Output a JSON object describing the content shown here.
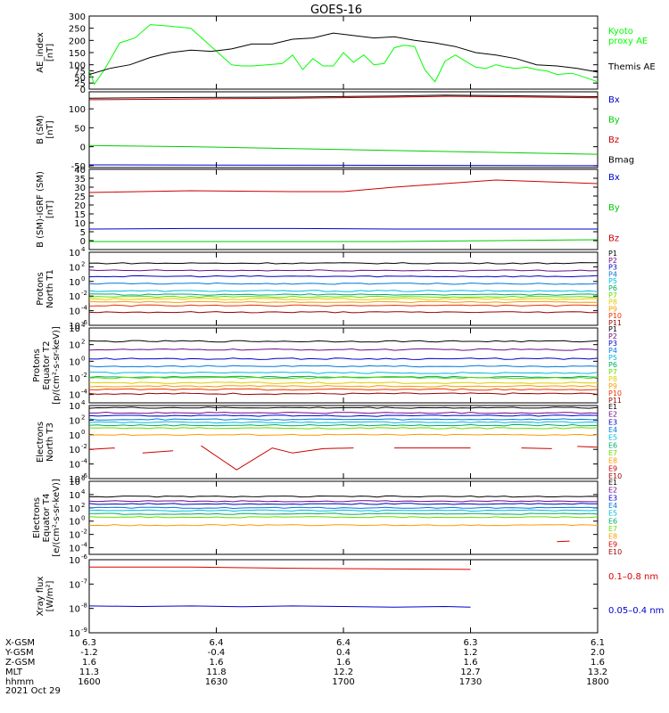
{
  "title": "GOES-16",
  "chart_data": [
    {
      "type": "line",
      "ylabel": "AE_index\n[nT]",
      "ylim": [
        0,
        300
      ],
      "yticks": [
        0,
        25,
        50,
        75,
        100,
        150,
        200,
        250,
        300
      ],
      "ytick_labels": [
        "0",
        "25",
        "50",
        "75",
        "100",
        "150",
        "200",
        "250",
        "300"
      ],
      "series": [
        {
          "name": "Kyoto\nproxy AE",
          "color": "#00ff00",
          "x": [
            0,
            0.01,
            0.03,
            0.06,
            0.09,
            0.12,
            0.15,
            0.2,
            0.24,
            0.28,
            0.3,
            0.32,
            0.35,
            0.38,
            0.4,
            0.42,
            0.44,
            0.46,
            0.48,
            0.5,
            0.52,
            0.54,
            0.56,
            0.58,
            0.6,
            0.62,
            0.64,
            0.66,
            0.68,
            0.7,
            0.72,
            0.74,
            0.76,
            0.78,
            0.8,
            0.82,
            0.84,
            0.86,
            0.88,
            0.9,
            0.92,
            0.95,
            0.98,
            1.0
          ],
          "y": [
            75,
            20,
            80,
            190,
            210,
            265,
            260,
            250,
            175,
            100,
            95,
            95,
            100,
            105,
            140,
            80,
            125,
            95,
            95,
            150,
            110,
            140,
            100,
            105,
            170,
            180,
            175,
            80,
            30,
            115,
            140,
            115,
            90,
            85,
            100,
            90,
            85,
            90,
            80,
            75,
            60,
            65,
            45,
            30
          ]
        },
        {
          "name": "Themis AE",
          "color": "#000000",
          "x": [
            0,
            0.04,
            0.08,
            0.12,
            0.16,
            0.2,
            0.24,
            0.28,
            0.32,
            0.36,
            0.4,
            0.44,
            0.48,
            0.52,
            0.56,
            0.6,
            0.64,
            0.68,
            0.72,
            0.76,
            0.8,
            0.84,
            0.88,
            0.92,
            0.96,
            1.0
          ],
          "y": [
            60,
            85,
            100,
            130,
            150,
            160,
            155,
            165,
            185,
            185,
            205,
            210,
            230,
            220,
            210,
            215,
            200,
            190,
            175,
            150,
            140,
            125,
            100,
            95,
            85,
            70
          ]
        }
      ]
    },
    {
      "type": "line",
      "ylabel": "B (SM)\n[nT]",
      "ylim": [
        -55,
        145
      ],
      "yticks": [
        -50,
        0,
        50,
        100
      ],
      "ytick_labels": [
        "-50",
        "0",
        "50",
        "100"
      ],
      "series": [
        {
          "name": "Bx",
          "color": "#0000cc",
          "x": [
            0,
            0.5,
            1.0
          ],
          "y": [
            -48,
            -49,
            -50
          ]
        },
        {
          "name": "By",
          "color": "#00cc00",
          "x": [
            0,
            0.2,
            0.4,
            0.6,
            0.8,
            1.0
          ],
          "y": [
            3,
            0,
            -5,
            -10,
            -15,
            -20
          ]
        },
        {
          "name": "Bz",
          "color": "#cc0000",
          "x": [
            0,
            0.2,
            0.4,
            0.6,
            0.7,
            0.8,
            1.0
          ],
          "y": [
            124,
            126,
            128,
            131,
            133,
            132,
            129
          ]
        },
        {
          "name": "Bmag",
          "color": "#000000",
          "x": [
            0,
            0.2,
            0.4,
            0.6,
            0.7,
            0.8,
            1.0
          ],
          "y": [
            128,
            130,
            131,
            134,
            136,
            135,
            132
          ]
        }
      ]
    },
    {
      "type": "line",
      "ylabel": "B (SM)-IGRF (SM)\n[nT]",
      "ylim": [
        -5,
        40
      ],
      "yticks": [
        0,
        5,
        10,
        15,
        20,
        25,
        30,
        35,
        40
      ],
      "ytick_labels": [
        "0",
        "5",
        "10",
        "15",
        "20",
        "25",
        "30",
        "35",
        "40"
      ],
      "series": [
        {
          "name": "Bx",
          "color": "#0000cc",
          "x": [
            0,
            0.2,
            0.4,
            0.6,
            0.8,
            1.0
          ],
          "y": [
            6.5,
            6.8,
            6.8,
            6.5,
            6.5,
            6.5
          ]
        },
        {
          "name": "By",
          "color": "#00cc00",
          "x": [
            0,
            0.2,
            0.4,
            0.6,
            0.8,
            1.0
          ],
          "y": [
            -0.5,
            -0.5,
            -0.5,
            -0.5,
            0,
            0.5
          ]
        },
        {
          "name": "Bz",
          "color": "#cc0000",
          "x": [
            0,
            0.2,
            0.4,
            0.5,
            0.6,
            0.7,
            0.8,
            0.9,
            1.0
          ],
          "y": [
            27,
            28,
            27.5,
            27.5,
            30,
            32,
            34,
            33,
            32
          ]
        }
      ]
    },
    {
      "type": "line",
      "ylabel": "Protons\nNorth T1",
      "yscale": "log",
      "ylim_exp": [
        -6,
        4
      ],
      "ytick_exps": [
        -6,
        -4,
        -2,
        0,
        2,
        4
      ],
      "series": [
        {
          "name": "P1",
          "color": "#000000",
          "level": 2.5
        },
        {
          "name": "P2",
          "color": "#6a0d8a",
          "level": 1.5
        },
        {
          "name": "P3",
          "color": "#0000cc",
          "level": 0.7
        },
        {
          "name": "P4",
          "color": "#0077dd",
          "level": -0.3
        },
        {
          "name": "P5",
          "color": "#00bbdd",
          "level": -1.3
        },
        {
          "name": "P6",
          "color": "#00aa66",
          "level": -1.8
        },
        {
          "name": "P7",
          "color": "#66dd00",
          "level": -2.1
        },
        {
          "name": "P8",
          "color": "#ddcc00",
          "level": -2.4
        },
        {
          "name": "P9",
          "color": "#ff9900",
          "level": -2.8
        },
        {
          "name": "P10",
          "color": "#ee3300",
          "level": -3.3
        },
        {
          "name": "P11",
          "color": "#990000",
          "level": -4.2
        }
      ]
    },
    {
      "type": "line",
      "ylabel": "Protons\nEquator T2\n[p/(cm²-s-sr-keV)]",
      "yscale": "log",
      "ylim_exp": [
        -5,
        4
      ],
      "ytick_exps": [
        -4,
        -2,
        0,
        2,
        4
      ],
      "series": [
        {
          "name": "P1",
          "color": "#000000",
          "level": 2.4
        },
        {
          "name": "P2",
          "color": "#6a0d8a",
          "level": 1.4
        },
        {
          "name": "P3",
          "color": "#0000cc",
          "level": 0.3
        },
        {
          "name": "P4",
          "color": "#0077dd",
          "level": -0.6
        },
        {
          "name": "P5",
          "color": "#00bbdd",
          "level": -1.4
        },
        {
          "name": "P6",
          "color": "#00aa66",
          "level": -1.9
        },
        {
          "name": "P7",
          "color": "#66dd00",
          "level": -2.0
        },
        {
          "name": "P8",
          "color": "#ddcc00",
          "level": -2.6
        },
        {
          "name": "P9",
          "color": "#ff9900",
          "level": -3.0
        },
        {
          "name": "P10",
          "color": "#ee3300",
          "level": -3.4
        },
        {
          "name": "P11",
          "color": "#990000",
          "level": -3.9
        }
      ]
    },
    {
      "type": "line",
      "ylabel": "Electrons\nNorth T3",
      "yscale": "log",
      "ylim_exp": [
        -6,
        4
      ],
      "ytick_exps": [
        -6,
        -4,
        -2,
        0,
        2,
        4
      ],
      "series": [
        {
          "name": "E1",
          "color": "#000000",
          "level": 3.7
        },
        {
          "name": "E2",
          "color": "#6a0d8a",
          "level": 3.0
        },
        {
          "name": "E3",
          "color": "#0000cc",
          "level": 2.6
        },
        {
          "name": "E4",
          "color": "#0077dd",
          "level": 2.1
        },
        {
          "name": "E5",
          "color": "#00bbdd",
          "level": 1.7
        },
        {
          "name": "E6",
          "color": "#00aa66",
          "level": 1.3
        },
        {
          "name": "E7",
          "color": "#66dd00",
          "level": 0.9
        },
        {
          "name": "E8",
          "color": "#ff9900",
          "level": 0.0
        },
        {
          "name": "E9",
          "color": "#cc0000",
          "level": null
        },
        {
          "name": "E10",
          "color": "#990000",
          "level": null
        }
      ],
      "e9_segments": [
        {
          "x": [
            0.0,
            0.05
          ],
          "y": [
            -2.0,
            -1.8
          ]
        },
        {
          "x": [
            0.105,
            0.165
          ],
          "y": [
            -2.5,
            -2.2
          ]
        },
        {
          "x": [
            0.22,
            0.29,
            0.36,
            0.4,
            0.46,
            0.52
          ],
          "y": [
            -1.5,
            -4.8,
            -1.8,
            -2.5,
            -1.9,
            -1.8
          ]
        },
        {
          "x": [
            0.6,
            0.75
          ],
          "y": [
            -1.8,
            -1.8
          ]
        },
        {
          "x": [
            0.85,
            0.91
          ],
          "y": [
            -1.8,
            -1.9
          ]
        },
        {
          "x": [
            0.96,
            1.0
          ],
          "y": [
            -1.6,
            -1.7
          ]
        }
      ]
    },
    {
      "type": "line",
      "ylabel": "Electrons\nEquator T4\n[e/(cm²-s-sr-keV)]",
      "yscale": "log",
      "ylim_exp": [
        -5,
        6
      ],
      "ytick_exps": [
        -4,
        -2,
        0,
        2,
        4,
        6
      ],
      "series": [
        {
          "name": "E1",
          "color": "#000000",
          "level": 3.7
        },
        {
          "name": "E2",
          "color": "#6a0d8a",
          "level": 3.0
        },
        {
          "name": "E3",
          "color": "#0000cc",
          "level": 2.6
        },
        {
          "name": "E4",
          "color": "#0077dd",
          "level": 2.0
        },
        {
          "name": "E5",
          "color": "#00bbdd",
          "level": 1.6
        },
        {
          "name": "E6",
          "color": "#00aa66",
          "level": 1.1
        },
        {
          "name": "E7",
          "color": "#66dd00",
          "level": 0.6
        },
        {
          "name": "E8",
          "color": "#ff9900",
          "level": -0.6
        },
        {
          "name": "E9",
          "color": "#cc0000",
          "level": null
        },
        {
          "name": "E10",
          "color": "#990000",
          "level": null
        }
      ],
      "e9_segments": [
        {
          "x": [
            0.92,
            0.945
          ],
          "y": [
            -3.1,
            -3.0
          ]
        }
      ]
    },
    {
      "type": "line",
      "ylabel": "Xray flux\n[W/m²]",
      "yscale": "log",
      "ylim_exp": [
        -9,
        -6
      ],
      "ytick_exps": [
        -9,
        -8,
        -7,
        -6
      ],
      "series": [
        {
          "name": "0.1–0.8 nm",
          "color": "#dd0000",
          "x": [
            0,
            0.2,
            0.4,
            0.6,
            0.75
          ],
          "y": [
            -6.3,
            -6.3,
            -6.35,
            -6.38,
            -6.4
          ]
        },
        {
          "name": "0.05–0.4 nm",
          "color": "#0000cc",
          "x": [
            0,
            0.1,
            0.2,
            0.3,
            0.4,
            0.5,
            0.6,
            0.7,
            0.75
          ],
          "y": [
            -7.9,
            -7.92,
            -7.9,
            -7.93,
            -7.9,
            -7.92,
            -7.95,
            -7.92,
            -7.95
          ]
        }
      ]
    }
  ],
  "orbit_table": {
    "row_labels": [
      "X-GSM",
      "Y-GSM",
      "Z-GSM",
      "MLT",
      "hhmm"
    ],
    "columns": [
      [
        "6.3",
        "-1.2",
        "1.6",
        "11.3",
        "1600"
      ],
      [
        "6.4",
        "-0.4",
        "1.6",
        "11.8",
        "1630"
      ],
      [
        "6.4",
        "0.4",
        "1.6",
        "12.2",
        "1700"
      ],
      [
        "6.3",
        "1.2",
        "1.6",
        "12.7",
        "1730"
      ],
      [
        "6.1",
        "2.0",
        "1.6",
        "13.2",
        "1800"
      ]
    ],
    "date": "2021 Oct 29"
  }
}
